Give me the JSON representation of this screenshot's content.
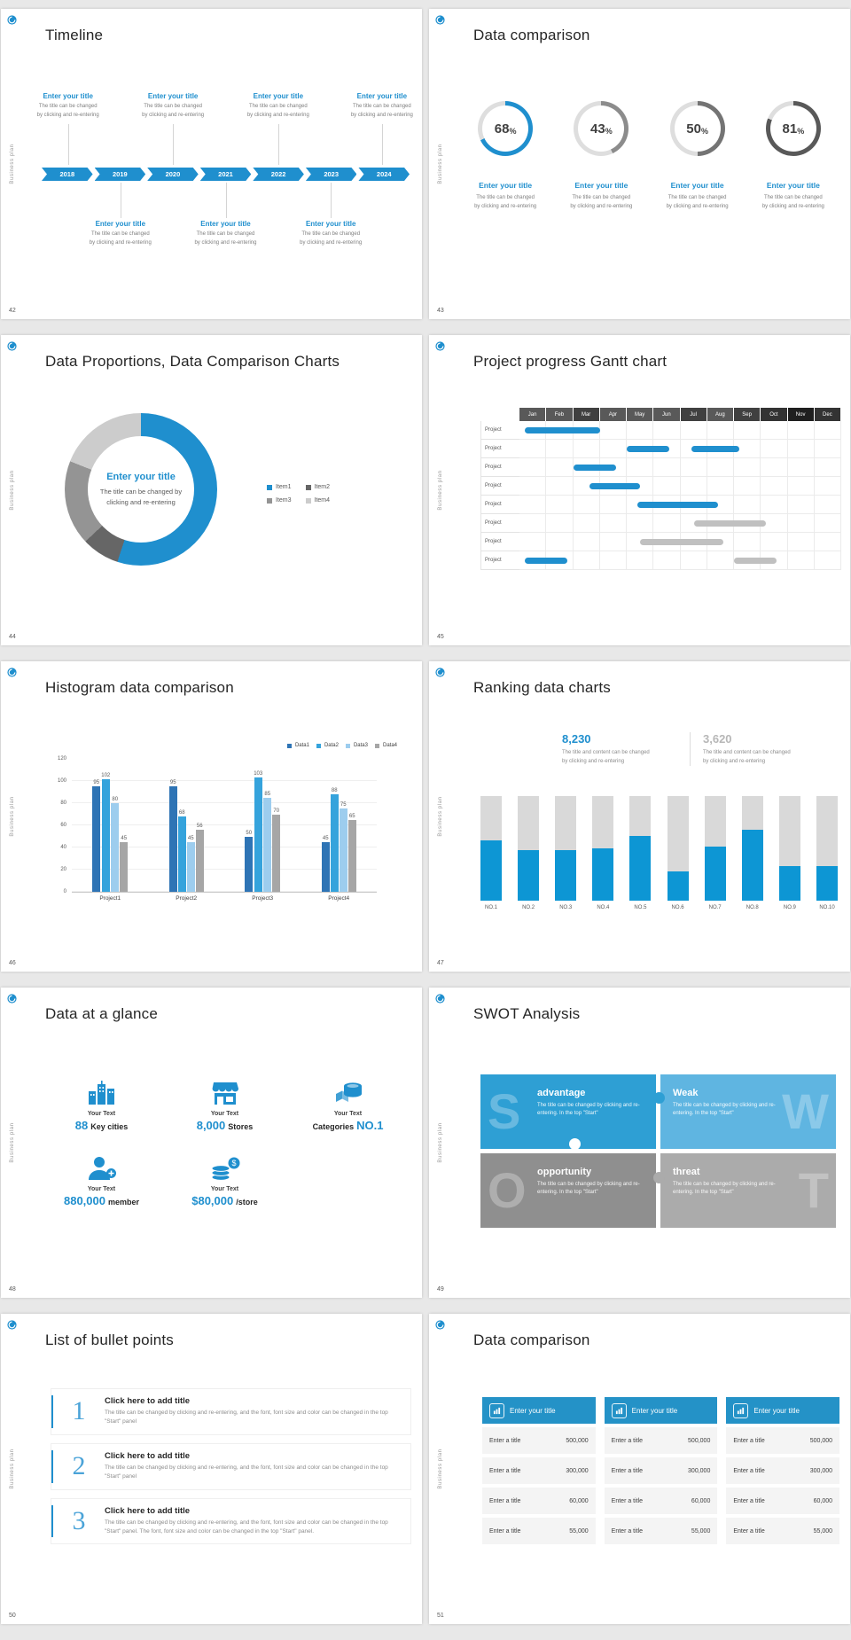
{
  "page": {
    "background": "#e8e8e8",
    "vertical_label": "Business plan",
    "accent_color": "#1f8fce"
  },
  "s42": {
    "number": "42",
    "title": "Timeline",
    "years": [
      "2018",
      "2019",
      "2020",
      "2021",
      "2022",
      "2023",
      "2024"
    ],
    "item_title": "Enter your title",
    "item_desc1": "The title can be changed",
    "item_desc2": "by clicking and re-entering"
  },
  "s43": {
    "number": "43",
    "title": "Data comparison",
    "item_title": "Enter your title",
    "item_desc1": "The title can be changed",
    "item_desc2": "by clicking and re-entering"
  },
  "s44": {
    "number": "44",
    "title": "Data Proportions, Data Comparison Charts"
  },
  "s45": {
    "number": "45",
    "title": "Project progress Gantt chart"
  },
  "s46": {
    "number": "46",
    "title": "Histogram data comparison"
  },
  "s47": {
    "number": "47",
    "title": "Ranking data charts"
  },
  "s48": {
    "number": "48",
    "title": "Data at a glance",
    "items": [
      {
        "label": "Your Text",
        "value": "88",
        "unit": "Key cities"
      },
      {
        "label": "Your Text",
        "value": "8,000",
        "unit": "Stores"
      },
      {
        "label": "Your Text",
        "unit": "Categories",
        "value": "NO.1"
      },
      {
        "label": "Your Text",
        "value": "880,000",
        "unit": "member"
      },
      {
        "label": "Your Text",
        "value": "$80,000",
        "unit": "/store"
      }
    ]
  },
  "s49": {
    "number": "49",
    "title": "SWOT Analysis",
    "cells": [
      {
        "letter": "S",
        "title": "advantage",
        "desc": "The title can be changed by clicking and re-entering. In the top \"Start\"",
        "color": "#2e9fd4"
      },
      {
        "letter": "W",
        "title": "Weak",
        "desc": "The title can be changed by clicking and re-entering. In the top \"Start\"",
        "color": "#5fb5e1"
      },
      {
        "letter": "O",
        "title": "opportunity",
        "desc": "The title can be changed by clicking and re-entering. In the top \"Start\"",
        "color": "#8f8f8f"
      },
      {
        "letter": "T",
        "title": "threat",
        "desc": "The title can be changed by clicking and re-entering. In the top \"Start\"",
        "color": "#ababab"
      }
    ]
  },
  "s50": {
    "number": "50",
    "title": "List of bullet points",
    "items": [
      {
        "num": "1",
        "title": "Click here to add title",
        "desc": "The title can be changed by clicking and re-entering, and the font, font size and color can be changed in the top \"Start\" panel"
      },
      {
        "num": "2",
        "title": "Click here to add title",
        "desc": "The title can be changed by clicking and re-entering, and the font, font size and color can be changed in the top \"Start\" panel"
      },
      {
        "num": "3",
        "title": "Click here to add title",
        "desc": "The title can be changed by clicking and re-entering, and the font, font size and color can be changed in the top \"Start\" panel. The font, font size and color can be changed in the top \"Start\" panel."
      }
    ]
  },
  "s51": {
    "number": "51",
    "title": "Data comparison",
    "col_header": "Enter your title",
    "rows": [
      {
        "label": "Enter a title",
        "value": "500,000"
      },
      {
        "label": "Enter a title",
        "value": "300,000"
      },
      {
        "label": "Enter a title",
        "value": "60,000"
      },
      {
        "label": "Enter a title",
        "value": "55,000"
      }
    ]
  },
  "chart_data": [
    {
      "id": "progress-rings",
      "type": "donut-progress",
      "title": "Data comparison",
      "values": [
        68,
        43,
        50,
        81
      ],
      "unit": "%",
      "ring_colors": [
        "#1f8fce",
        "#8c8c8c",
        "#747474",
        "#595959"
      ],
      "track_color": "#dedede"
    },
    {
      "id": "proportions-donut",
      "type": "pie",
      "labels": [
        "Item1",
        "Item2",
        "Item3",
        "Item4"
      ],
      "values": [
        55,
        8,
        18,
        19
      ],
      "colors": [
        "#1f8fce",
        "#666666",
        "#949494",
        "#cccccc"
      ],
      "center_title": "Enter your title",
      "center_text": "The title can be changed by clicking and re-entering"
    },
    {
      "id": "gantt",
      "type": "gantt",
      "months": [
        "Jan",
        "Feb",
        "Mar",
        "Apr",
        "May",
        "Jun",
        "Jul",
        "Aug",
        "Sep",
        "Oct",
        "Nov",
        "Dec"
      ],
      "month_colors": [
        "#595959",
        "#595959",
        "#404040",
        "#595959",
        "#595959",
        "#595959",
        "#404040",
        "#595959",
        "#404040",
        "#333333",
        "#1f1f1f",
        "#333333"
      ],
      "row_label": "Project",
      "row_count": 8,
      "bar_colors": {
        "blue": "#1f8fce",
        "gray": "#c0c0c0"
      },
      "rows": [
        {
          "bars": [
            {
              "start": 0.2,
              "end": 3.0,
              "color": "blue"
            }
          ]
        },
        {
          "bars": [
            {
              "start": 4.0,
              "end": 5.6,
              "color": "blue"
            },
            {
              "start": 6.4,
              "end": 8.2,
              "color": "blue"
            }
          ]
        },
        {
          "bars": [
            {
              "start": 2.0,
              "end": 3.6,
              "color": "blue"
            }
          ]
        },
        {
          "bars": [
            {
              "start": 2.6,
              "end": 4.5,
              "color": "blue"
            }
          ]
        },
        {
          "bars": [
            {
              "start": 4.4,
              "end": 7.4,
              "color": "blue"
            }
          ]
        },
        {
          "bars": [
            {
              "start": 6.5,
              "end": 9.2,
              "color": "gray"
            }
          ]
        },
        {
          "bars": [
            {
              "start": 4.5,
              "end": 7.6,
              "color": "gray"
            }
          ]
        },
        {
          "bars": [
            {
              "start": 0.2,
              "end": 1.8,
              "color": "blue"
            },
            {
              "start": 8.0,
              "end": 9.6,
              "color": "gray"
            }
          ]
        }
      ]
    },
    {
      "id": "histogram",
      "type": "bar",
      "categories": [
        "Project1",
        "Project2",
        "Project3",
        "Project4"
      ],
      "series": [
        {
          "name": "Data1",
          "color": "#2e74b5",
          "values": [
            95,
            95,
            50,
            45
          ]
        },
        {
          "name": "Data2",
          "color": "#35a3dc",
          "values": [
            102,
            68,
            103,
            88
          ]
        },
        {
          "name": "Data3",
          "color": "#9dcdee",
          "values": [
            80,
            45,
            85,
            75
          ]
        },
        {
          "name": "Data4",
          "color": "#a6a6a6",
          "values": [
            45,
            56,
            70,
            65
          ]
        }
      ],
      "ylim": [
        0,
        120
      ],
      "yticks": [
        0,
        20,
        40,
        60,
        80,
        100,
        120
      ],
      "legend_position": "top-right",
      "grid": true
    },
    {
      "id": "ranking",
      "type": "bar",
      "categories": [
        "NO.1",
        "NO.2",
        "NO.3",
        "NO.4",
        "NO.5",
        "NO.6",
        "NO.7",
        "NO.8",
        "NO.9",
        "NO.10"
      ],
      "values": [
        58,
        48,
        48,
        50,
        62,
        28,
        52,
        68,
        33,
        33
      ],
      "value_unit": "percent-of-track",
      "bar_color": "#0d96d4",
      "track_color": "#d9d9d9",
      "highlights": [
        {
          "value": "8,230",
          "desc1": "The title and content can be changed",
          "desc2": "by clicking and re-entering",
          "color": "#1f8fce"
        },
        {
          "value": "3,620",
          "desc1": "The title and content can be changed",
          "desc2": "by clicking and re-entering",
          "color": "#b7b7b7"
        }
      ]
    }
  ]
}
